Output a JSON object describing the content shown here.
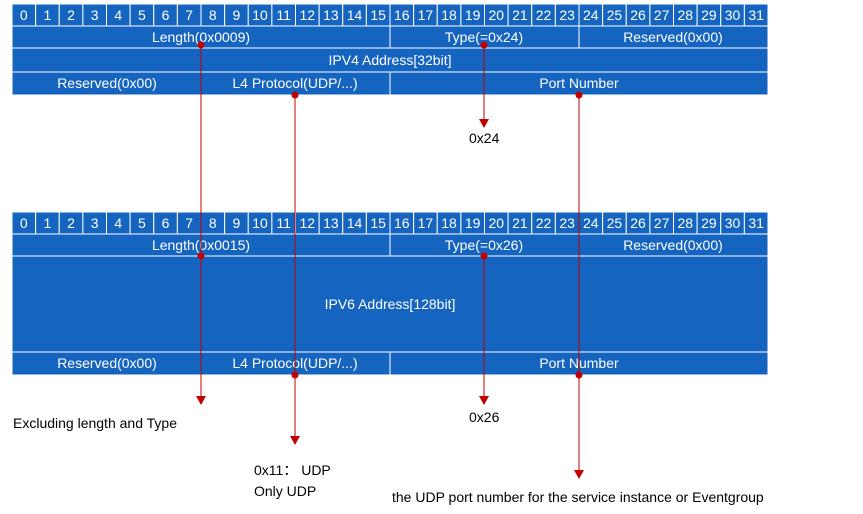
{
  "bit_numbers": [
    "0",
    "1",
    "2",
    "3",
    "4",
    "5",
    "6",
    "7",
    "8",
    "9",
    "10",
    "11",
    "12",
    "13",
    "14",
    "15",
    "16",
    "17",
    "18",
    "19",
    "20",
    "21",
    "22",
    "23",
    "24",
    "25",
    "26",
    "27",
    "28",
    "29",
    "30",
    "31"
  ],
  "ipv4_table": {
    "row1": {
      "length": "Length(0x0009)",
      "type": "Type(=0x24)",
      "reserved": "Reserved(0x00)"
    },
    "address": "IPV4 Address[32bit]",
    "row3": {
      "reserved": "Reserved(0x00)",
      "protocol": "L4 Protocol(UDP/...)",
      "port": "Port Number"
    }
  },
  "ipv6_table": {
    "row1": {
      "length": "Length(0x0015)",
      "type": "Type(=0x26)",
      "reserved": "Reserved(0x00)"
    },
    "address": "IPV6 Address[128bit]",
    "row3": {
      "reserved": "Reserved(0x00)",
      "protocol": "L4 Protocol(UDP/...)",
      "port": "Port Number"
    }
  },
  "annotations": {
    "ipv4_type_value": "0x24",
    "ipv6_type_value": "0x26",
    "length_note": "Excluding length and Type",
    "protocol_note_line1": "0x11： UDP",
    "protocol_note_line2": "Only UDP",
    "port_note": "the UDP port number for the service instance or Eventgroup"
  },
  "colors": {
    "cell_fill": "#1565C0",
    "cell_border": "#ffffff",
    "text": "#ffffff",
    "arrow": "#C00000",
    "note_text": "#000000"
  }
}
